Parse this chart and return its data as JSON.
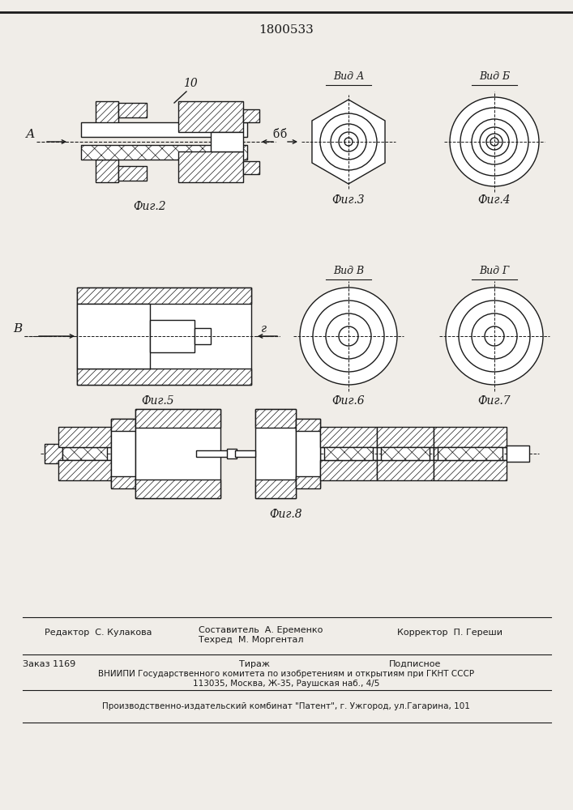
{
  "title": "1800533",
  "bg": "#f0ede8",
  "dc": "#1a1a1a",
  "fig2_label": "Фиг.2",
  "fig3_label": "Фиг.3",
  "fig4_label": "Фиг.4",
  "fig5_label": "Фиг.5",
  "fig6_label": "Фиг.6",
  "fig7_label": "Фиг.7",
  "fig8_label": "Фиг.8",
  "vid_a": "Вид А",
  "vid_b": "Вид Б",
  "vid_v": "Вид В",
  "vid_g": "Вид Г",
  "lbl_10": "10",
  "lbl_A": "А",
  "lbl_B": "В",
  "lbl_b": "б",
  "lbl_g": "г",
  "line1a": "Редактор  С. Кулакова",
  "line1b": "Составитель  А. Еременко",
  "line1c": "Техред  М. Моргентал",
  "line1d": "Корректор  П. Гереши",
  "line2a": "Заказ 1169",
  "line2b": "Тираж",
  "line2c": "Подписное",
  "line3": "ВНИИПИ Государственного комитета по изобретениям и открытиям при ГКНТ СССР",
  "line4": "113035, Москва, Ж-35, Раушская наб., 4/5",
  "line5": "Производственно-издательский комбинат \"Патент\", г. Ужгород, ул.Гагарина, 101"
}
